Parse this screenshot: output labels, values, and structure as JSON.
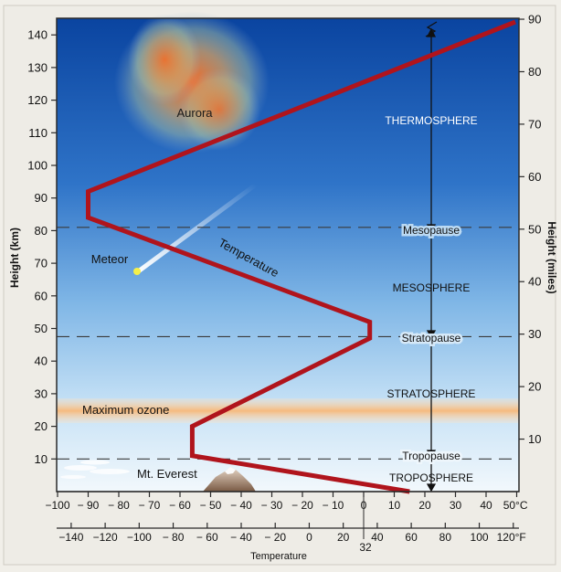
{
  "left_axis": {
    "label": "Height (km)",
    "ticks": [
      "10",
      "20",
      "30",
      "40",
      "50",
      "60",
      "70",
      "80",
      "90",
      "100",
      "110",
      "120",
      "130",
      "140"
    ]
  },
  "right_axis": {
    "label": "Height (miles)",
    "ticks": [
      "10",
      "20",
      "30",
      "40",
      "50",
      "60",
      "70",
      "80",
      "90"
    ]
  },
  "celsius_axis": {
    "ticks": [
      "−100",
      "− 90",
      "− 80",
      "− 70",
      "− 60",
      "− 50",
      "− 40",
      "− 30",
      "− 20",
      "− 10",
      "0",
      "10",
      "20",
      "30",
      "40",
      "50°C"
    ]
  },
  "fahrenheit_axis": {
    "ticks": [
      "−140",
      "−120",
      "−100",
      "− 80",
      "− 60",
      "− 40",
      "− 20",
      "0",
      "20",
      "40",
      "60",
      "80",
      "100",
      "120°F"
    ],
    "extra": "32"
  },
  "x_axis_label": "Temperature",
  "labels": {
    "aurora": "Aurora",
    "meteor": "Meteor",
    "temperature_curve": "Temperature",
    "maximum_ozone": "Maximum ozone",
    "everest": "Mt. Everest"
  },
  "layers": {
    "thermosphere": "THERMOSPHERE",
    "mesopause": "Mesopause",
    "mesosphere": "MESOSPHERE",
    "stratopause": "Stratopause",
    "stratosphere": "STRATOSPHERE",
    "tropopause": "Tropopause",
    "troposphere": "TROPOSPHERE"
  },
  "temperature_profile_km_C": [
    {
      "km": 0,
      "c": 15
    },
    {
      "km": 11,
      "c": -56
    },
    {
      "km": 20,
      "c": -56
    },
    {
      "km": 47,
      "c": 2
    },
    {
      "km": 52,
      "c": 2
    },
    {
      "km": 84,
      "c": -90
    },
    {
      "km": 92,
      "c": -90
    },
    {
      "km": 150,
      "c": 50
    }
  ],
  "boundaries_km": {
    "tropopause": 10,
    "stratopause": 47.5,
    "mesopause": 81
  },
  "ozone_layer_km": [
    20,
    27
  ],
  "colors": {
    "sky_top": "#0d4aa5",
    "sky_mid": "#5c9cdc",
    "sky_low": "#ddeefa",
    "temperature_line": "#b0141c",
    "ozone": "#f9c38a",
    "frame": "#2a2a2a"
  }
}
